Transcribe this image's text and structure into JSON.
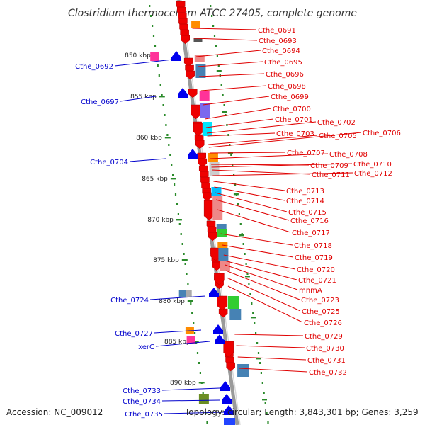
{
  "title": "Clostridium thermocellum ATCC 27405, complete genome",
  "accession": "Accession: NC_009012",
  "summary": "Topology: circular; Length: 3,843,301 bp; Genes: 3,259",
  "colors": {
    "forward_label": "#e00000",
    "reverse_label": "#0000cc",
    "backbone": "#888888",
    "track_dots": "#2a8a2a"
  },
  "scale_labels": [
    "850 kbp",
    "855 kbp",
    "860 kbp",
    "865 kbp",
    "870 kbp",
    "875 kbp",
    "880 kbp",
    "885 kbp",
    "890 kbp"
  ],
  "left_genes": [
    "Cthe_0692",
    "Cthe_0697",
    "Cthe_0704",
    "Cthe_0724",
    "Cthe_0727",
    "xerC",
    "Cthe_0733",
    "Cthe_0734",
    "Cthe_0735"
  ],
  "right_genes": [
    "Cthe_0691",
    "Cthe_0693",
    "Cthe_0694",
    "Cthe_0695",
    "Cthe_0696",
    "Cthe_0698",
    "Cthe_0699",
    "Cthe_0700",
    "Cthe_0701",
    "Cthe_0702",
    "Cthe_0703",
    "Cthe_0705",
    "Cthe_0706",
    "Cthe_0707",
    "Cthe_0708",
    "Cthe_0709",
    "Cthe_0710",
    "Cthe_0711",
    "Cthe_0712",
    "Cthe_0713",
    "Cthe_0714",
    "Cthe_0715",
    "Cthe_0716",
    "Cthe_0717",
    "Cthe_0718",
    "Cthe_0719",
    "Cthe_0720",
    "Cthe_0721",
    "mnmA",
    "Cthe_0723",
    "Cthe_0725",
    "Cthe_0726",
    "Cthe_0729",
    "Cthe_0730",
    "Cthe_0731",
    "Cthe_0732"
  ]
}
